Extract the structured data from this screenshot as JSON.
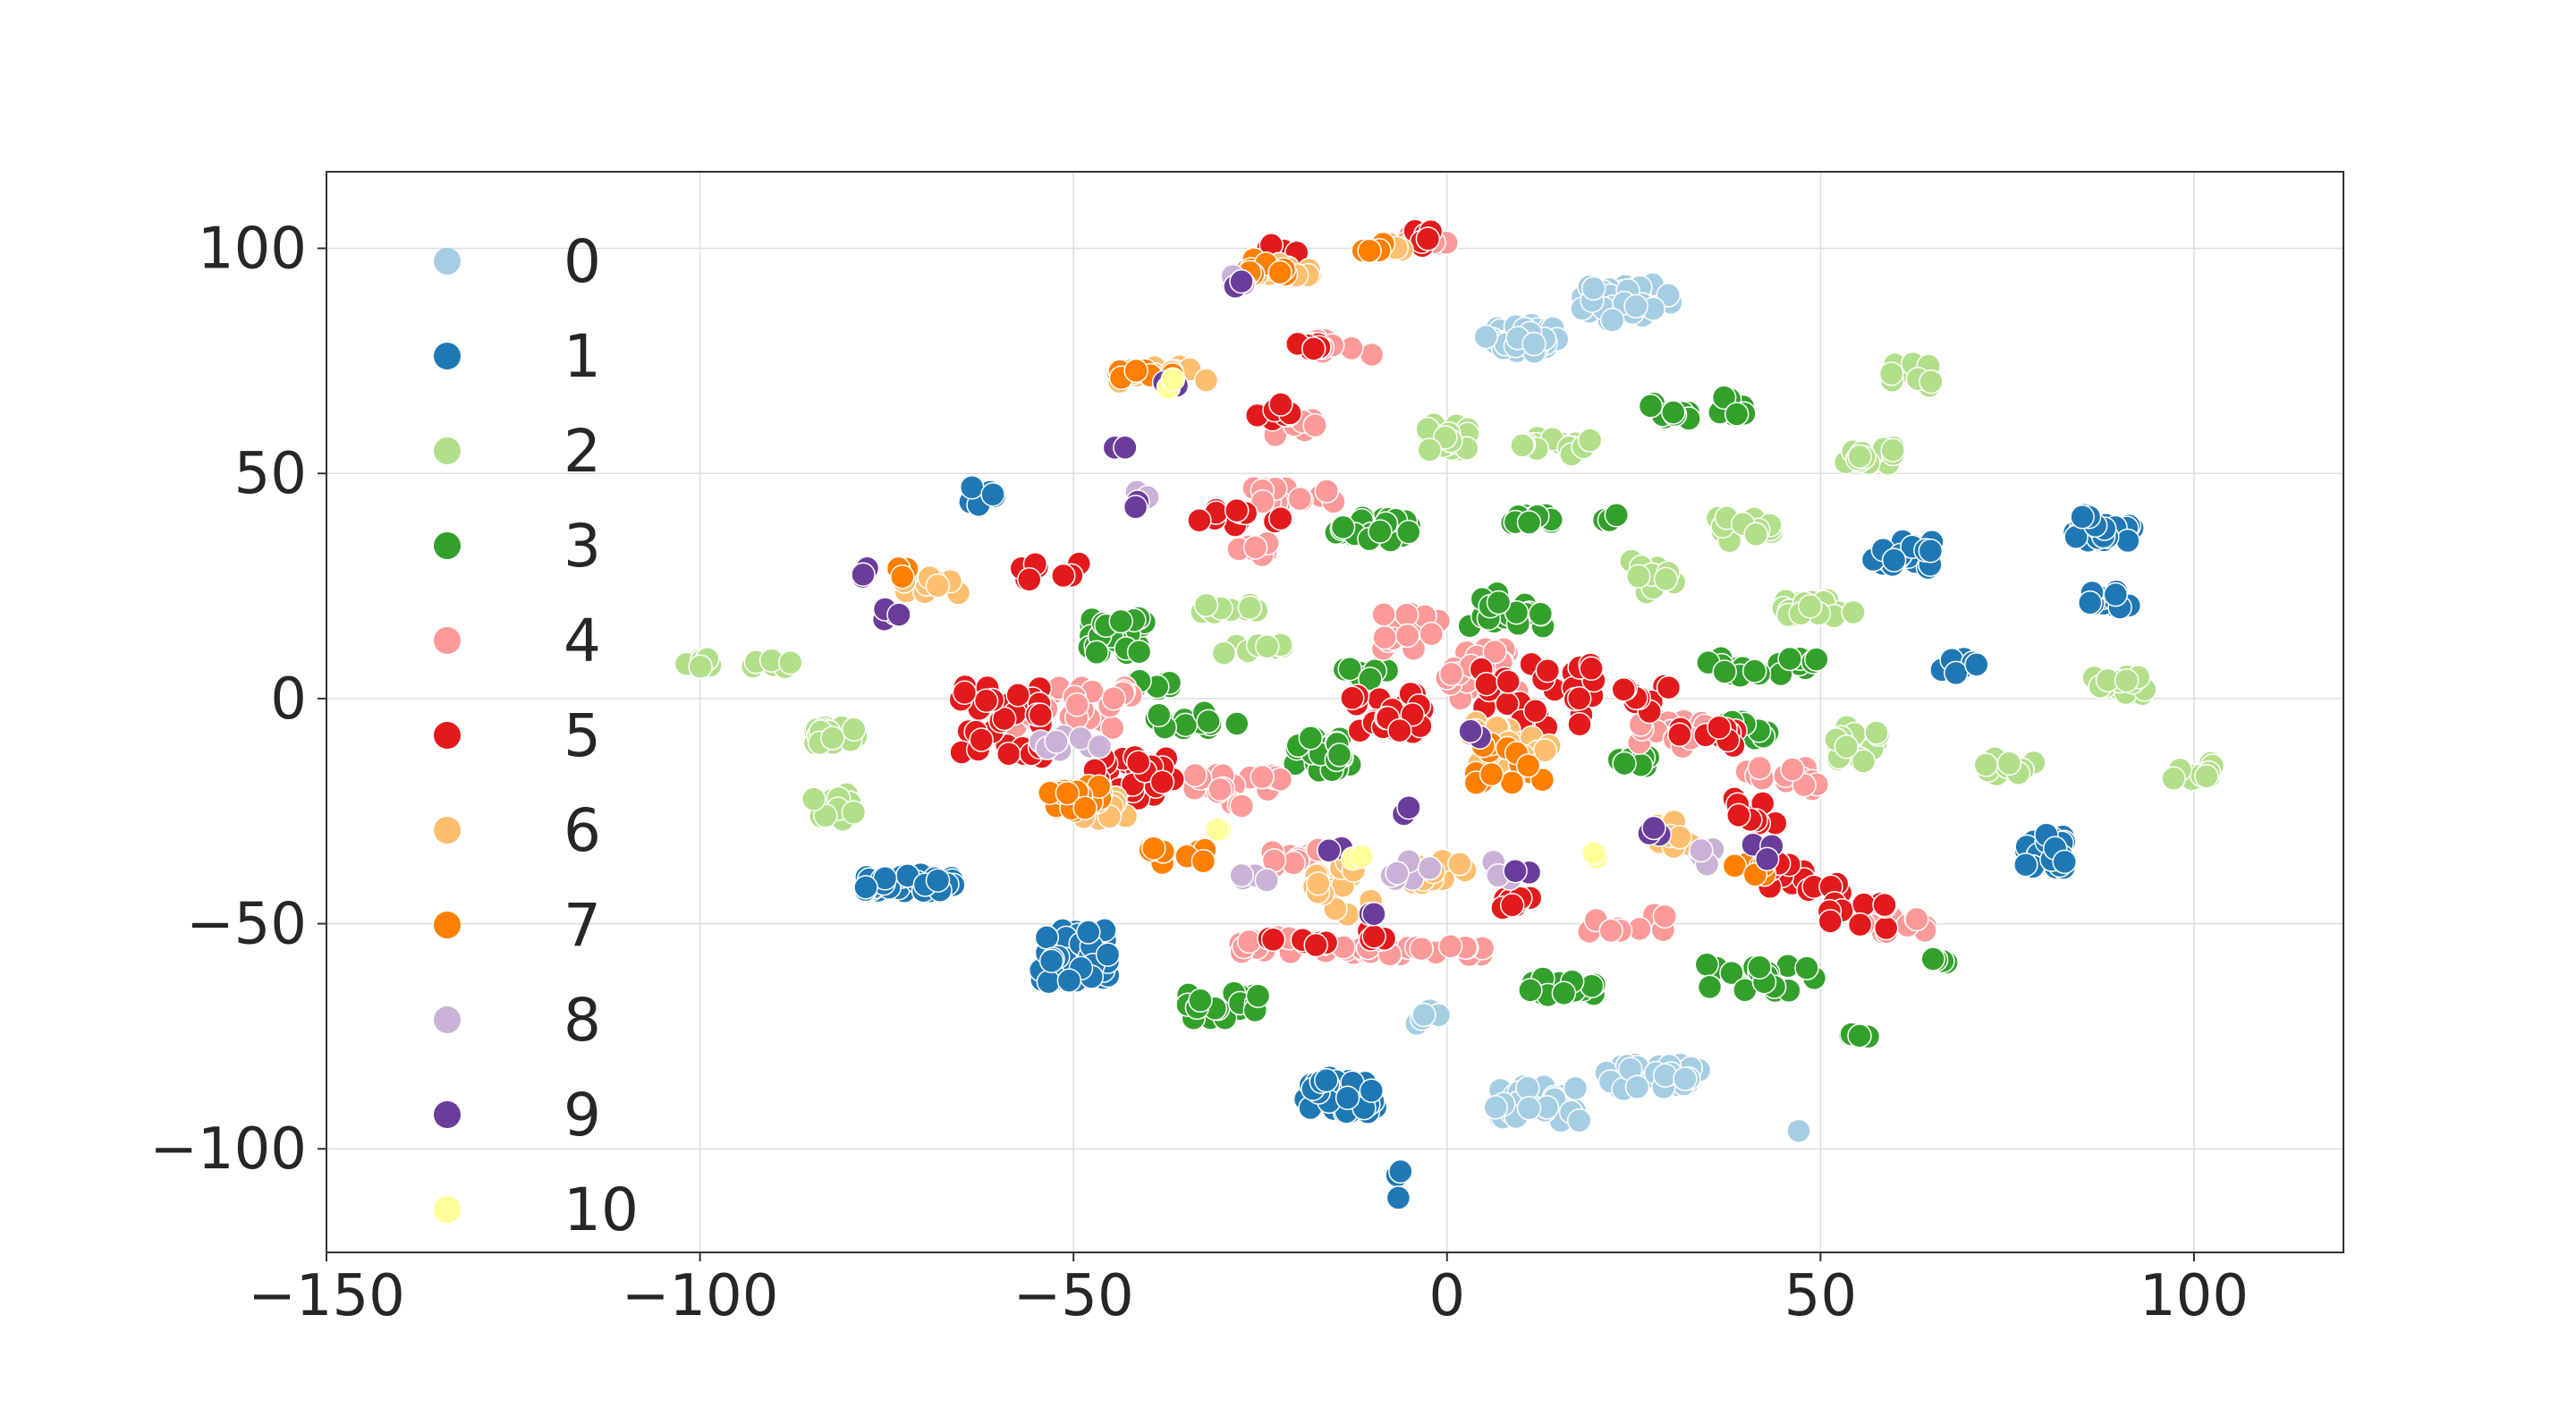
{
  "chart_data": {
    "type": "scatter",
    "title": "",
    "xlabel": "",
    "ylabel": "",
    "xlim": [
      -150,
      120
    ],
    "ylim": [
      -123,
      117
    ],
    "grid": true,
    "legend_position": "top-left",
    "x_ticks": [
      -150,
      -100,
      -50,
      0,
      50,
      100
    ],
    "x_tick_labels": [
      "−150",
      "−100",
      "−50",
      "0",
      "50",
      "100"
    ],
    "y_ticks": [
      -100,
      -50,
      0,
      50,
      100
    ],
    "y_tick_labels": [
      "−100",
      "−50",
      "0",
      "50",
      "100"
    ],
    "series": [
      {
        "name": "0",
        "color": "#a6cee3",
        "clusters": [
          [
            10,
            80,
            5,
            3,
            40
          ],
          [
            24,
            88,
            6,
            4,
            40
          ],
          [
            12,
            -90,
            6,
            4,
            30
          ],
          [
            28,
            -84,
            7,
            3,
            35
          ],
          [
            48,
            -97,
            1,
            1,
            1
          ],
          [
            -3,
            -71,
            2,
            2,
            6
          ]
        ]
      },
      {
        "name": "1",
        "color": "#1f78b4",
        "clusters": [
          [
            -62,
            45,
            2,
            2,
            8
          ],
          [
            -72,
            -41,
            6,
            2,
            35
          ],
          [
            -50,
            -57,
            5,
            6,
            45
          ],
          [
            -14,
            -88,
            5,
            4,
            35
          ],
          [
            -7,
            -108,
            1,
            3,
            3
          ],
          [
            61,
            32,
            4,
            3,
            25
          ],
          [
            68,
            7,
            3,
            2,
            8
          ],
          [
            80,
            -34,
            3,
            4,
            30
          ],
          [
            88,
            37,
            4,
            2,
            20
          ],
          [
            89,
            22,
            3,
            2,
            15
          ],
          [
            86,
            40,
            1,
            2,
            4
          ]
        ]
      },
      {
        "name": "2",
        "color": "#b2df8a",
        "clusters": [
          [
            -100,
            8,
            2,
            1,
            8
          ],
          [
            -90,
            8,
            3,
            1,
            8
          ],
          [
            -82,
            -8,
            3,
            2,
            25
          ],
          [
            -82,
            -24,
            3,
            3,
            12
          ],
          [
            -28,
            20,
            5,
            1,
            12
          ],
          [
            -26,
            11,
            4,
            1,
            8
          ],
          [
            0,
            58,
            3,
            3,
            22
          ],
          [
            15,
            56,
            5,
            2,
            15
          ],
          [
            27,
            27,
            4,
            4,
            15
          ],
          [
            40,
            38,
            4,
            3,
            15
          ],
          [
            50,
            20,
            5,
            2,
            18
          ],
          [
            56,
            54,
            4,
            2,
            20
          ],
          [
            62,
            72,
            3,
            3,
            10
          ],
          [
            55,
            -10,
            3,
            4,
            15
          ],
          [
            75,
            -15,
            4,
            2,
            10
          ],
          [
            90,
            3,
            4,
            2,
            15
          ],
          [
            100,
            -16,
            3,
            2,
            10
          ]
        ]
      },
      {
        "name": "3",
        "color": "#33a02c",
        "clusters": [
          [
            -44,
            14,
            4,
            4,
            30
          ],
          [
            -40,
            3,
            3,
            1,
            10
          ],
          [
            -34,
            -5,
            6,
            2,
            15
          ],
          [
            -17,
            -12,
            4,
            4,
            30
          ],
          [
            -10,
            38,
            5,
            3,
            20
          ],
          [
            -12,
            5,
            4,
            2,
            12
          ],
          [
            8,
            20,
            5,
            4,
            20
          ],
          [
            15,
            40,
            8,
            1,
            15
          ],
          [
            30,
            64,
            3,
            2,
            12
          ],
          [
            38,
            65,
            2,
            2,
            8
          ],
          [
            25,
            -14,
            3,
            1,
            8
          ],
          [
            42,
            7,
            8,
            2,
            20
          ],
          [
            40,
            -7,
            4,
            2,
            10
          ],
          [
            -30,
            -68,
            5,
            3,
            18
          ],
          [
            15,
            -64,
            5,
            2,
            15
          ],
          [
            42,
            -62,
            8,
            3,
            20
          ],
          [
            55,
            -75,
            2,
            1,
            4
          ],
          [
            68,
            -58,
            3,
            1,
            5
          ]
        ]
      },
      {
        "name": "4",
        "color": "#fb9a99",
        "clusters": [
          [
            -50,
            -2,
            8,
            5,
            30
          ],
          [
            -28,
            -20,
            6,
            4,
            20
          ],
          [
            -20,
            -35,
            4,
            3,
            12
          ],
          [
            -22,
            -55,
            6,
            2,
            15
          ],
          [
            -14,
            78,
            4,
            2,
            10
          ],
          [
            -20,
            60,
            3,
            2,
            8
          ],
          [
            -26,
            33,
            3,
            2,
            8
          ],
          [
            -20,
            46,
            6,
            3,
            15
          ],
          [
            -10,
            -56,
            5,
            1,
            12
          ],
          [
            0,
            -56,
            5,
            1,
            10
          ],
          [
            5,
            5,
            5,
            6,
            30
          ],
          [
            -5,
            15,
            4,
            4,
            15
          ],
          [
            25,
            -50,
            6,
            2,
            10
          ],
          [
            30,
            -8,
            5,
            3,
            15
          ],
          [
            45,
            -18,
            5,
            3,
            15
          ],
          [
            60,
            -50,
            5,
            2,
            12
          ],
          [
            -3,
            102,
            3,
            1,
            6
          ]
        ]
      },
      {
        "name": "5",
        "color": "#e31a1c",
        "clusters": [
          [
            -60,
            -5,
            6,
            8,
            35
          ],
          [
            -53,
            28,
            4,
            2,
            8
          ],
          [
            -42,
            -18,
            6,
            5,
            25
          ],
          [
            -28,
            40,
            6,
            2,
            12
          ],
          [
            -24,
            64,
            3,
            2,
            8
          ],
          [
            -20,
            78,
            3,
            1,
            6
          ],
          [
            -20,
            -54,
            4,
            1,
            8
          ],
          [
            -10,
            -52,
            2,
            2,
            6
          ],
          [
            -8,
            -3,
            5,
            5,
            25
          ],
          [
            12,
            0,
            8,
            8,
            30
          ],
          [
            10,
            -45,
            3,
            2,
            8
          ],
          [
            26,
            0,
            4,
            3,
            10
          ],
          [
            35,
            -8,
            4,
            3,
            10
          ],
          [
            40,
            -25,
            4,
            3,
            10
          ],
          [
            48,
            -40,
            5,
            4,
            15
          ],
          [
            55,
            -48,
            4,
            3,
            10
          ],
          [
            -4,
            102,
            2,
            2,
            6
          ],
          [
            -22,
            100,
            2,
            1,
            4
          ]
        ]
      },
      {
        "name": "6",
        "color": "#fdbf6f",
        "clusters": [
          [
            -70,
            25,
            5,
            2,
            15
          ],
          [
            -48,
            -24,
            5,
            3,
            15
          ],
          [
            -38,
            72,
            6,
            2,
            15
          ],
          [
            -22,
            96,
            4,
            2,
            12
          ],
          [
            -14,
            -42,
            4,
            6,
            18
          ],
          [
            -2,
            -40,
            5,
            4,
            12
          ],
          [
            8,
            -10,
            6,
            6,
            20
          ],
          [
            30,
            -30,
            4,
            3,
            10
          ],
          [
            -8,
            100,
            2,
            1,
            5
          ]
        ]
      },
      {
        "name": "7",
        "color": "#ff7f00",
        "clusters": [
          [
            -50,
            -22,
            4,
            3,
            18
          ],
          [
            -36,
            -35,
            4,
            2,
            10
          ],
          [
            -40,
            72,
            4,
            1,
            8
          ],
          [
            -24,
            96,
            3,
            2,
            10
          ],
          [
            -10,
            100,
            2,
            1,
            4
          ],
          [
            8,
            -15,
            5,
            5,
            15
          ],
          [
            40,
            -38,
            3,
            2,
            6
          ],
          [
            -73,
            28,
            1,
            1,
            3
          ]
        ]
      },
      {
        "name": "8",
        "color": "#cab2d6",
        "clusters": [
          [
            -26,
            -40,
            2,
            1,
            4
          ],
          [
            -28,
            92,
            1,
            2,
            4
          ],
          [
            -50,
            -10,
            5,
            2,
            8
          ],
          [
            -40,
            45,
            2,
            1,
            4
          ],
          [
            -5,
            -38,
            3,
            3,
            6
          ],
          [
            8,
            -38,
            2,
            2,
            4
          ],
          [
            35,
            -35,
            3,
            2,
            5
          ]
        ]
      },
      {
        "name": "9",
        "color": "#6a3d9a",
        "clusters": [
          [
            -78,
            28,
            1,
            1,
            3
          ],
          [
            -74,
            18,
            2,
            2,
            4
          ],
          [
            -44,
            55,
            2,
            1,
            3
          ],
          [
            -42,
            43,
            1,
            1,
            2
          ],
          [
            -36,
            70,
            2,
            1,
            3
          ],
          [
            -28,
            92,
            1,
            1,
            2
          ],
          [
            -15,
            -33,
            1,
            1,
            2
          ],
          [
            -10,
            -48,
            1,
            1,
            2
          ],
          [
            -6,
            -25,
            1,
            1,
            2
          ],
          [
            4,
            -8,
            1,
            1,
            2
          ],
          [
            10,
            -38,
            1,
            1,
            2
          ],
          [
            28,
            -30,
            2,
            2,
            3
          ],
          [
            42,
            -34,
            2,
            2,
            3
          ]
        ]
      },
      {
        "name": "10",
        "color": "#ffff99",
        "clusters": [
          [
            -37,
            70,
            1,
            1,
            2
          ],
          [
            -12,
            -35,
            1,
            1,
            2
          ],
          [
            -30,
            -30,
            1,
            1,
            2
          ],
          [
            20,
            -35,
            1,
            1,
            2
          ]
        ]
      }
    ]
  }
}
